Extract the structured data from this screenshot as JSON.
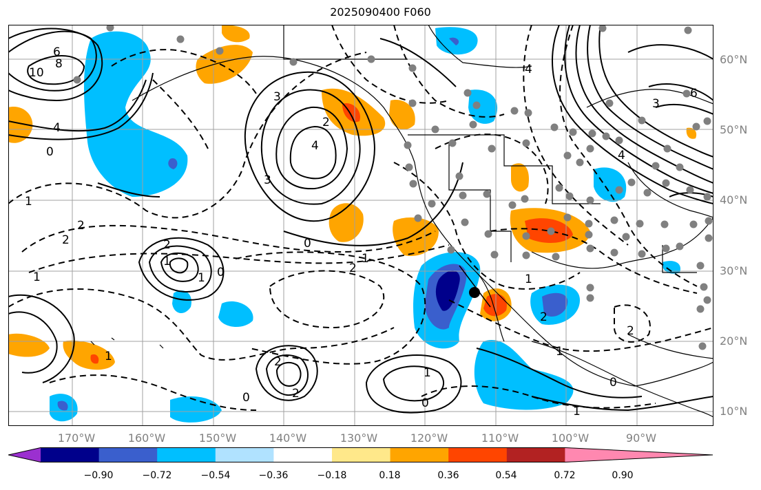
{
  "title": "2025090400 F060",
  "lat_labels": [
    "60°N",
    "50°N",
    "40°N",
    "30°N",
    "20°N",
    "10°N"
  ],
  "lon_labels": [
    "170°W",
    "160°W",
    "150°W",
    "140°W",
    "130°W",
    "120°W",
    "110°W",
    "100°W",
    "90°W"
  ],
  "colorbar": {
    "ticks": [
      "−0.90",
      "−0.72",
      "−0.54",
      "−0.36",
      "−0.18",
      "0.18",
      "0.36",
      "0.54",
      "0.72",
      "0.90"
    ],
    "colors": [
      "#9b30d0",
      "#00008b",
      "#3a5fcd",
      "#00bfff",
      "#b0e2ff",
      "#ffffff",
      "#ffe88a",
      "#ffa500",
      "#ff4500",
      "#b22222",
      "#ff88b0"
    ]
  },
  "contour_labels": [
    "6",
    "8",
    "10",
    "4",
    "0",
    "1",
    "2",
    "3",
    "4",
    "2",
    "1",
    "3",
    "0",
    "2",
    "2",
    "1",
    "0",
    "1",
    "2",
    "1",
    "1",
    "2",
    "0",
    "2",
    "1",
    "1",
    "0",
    "1",
    "4",
    "6",
    "0",
    "2",
    "3",
    "4",
    "2",
    "1"
  ],
  "colors": {
    "coast": "#000000",
    "grid": "#a0a0a0",
    "station": "#808080"
  }
}
